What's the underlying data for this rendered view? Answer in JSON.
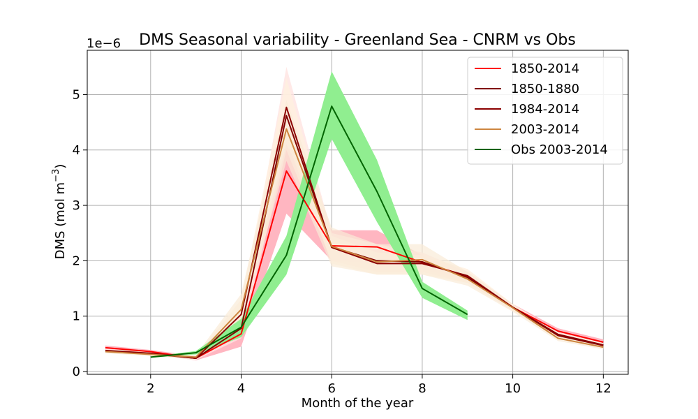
{
  "chart_data": {
    "type": "line",
    "title": "DMS Seasonal variability - Greenland Sea - CNRM vs Obs",
    "xlabel": "Month of the year",
    "ylabel_main": "DMS (mol m",
    "ylabel_sup": "−3",
    "ylabel_close": ")",
    "y_offset_text": "1e−6",
    "xlim": [
      0.6,
      12.55
    ],
    "ylim": [
      -0.05,
      5.8
    ],
    "xticks": [
      2,
      4,
      6,
      8,
      10,
      12
    ],
    "yticks": [
      0,
      1,
      2,
      3,
      4,
      5
    ],
    "grid": true,
    "legend_position": "top-right",
    "series": [
      {
        "name": "1850-2014",
        "color": "#ff0000",
        "band_color": "#ffb6c1",
        "band_opacity": 1.0,
        "x": [
          1,
          2,
          3,
          4,
          5,
          6,
          7,
          8,
          9,
          10,
          11,
          12
        ],
        "y": [
          0.43,
          0.36,
          0.24,
          0.68,
          3.62,
          2.27,
          2.25,
          1.97,
          1.72,
          1.16,
          0.73,
          0.53
        ],
        "lower": [
          0.39,
          0.33,
          0.2,
          0.45,
          2.85,
          2.0,
          1.95,
          1.85,
          1.62,
          1.1,
          0.68,
          0.47
        ],
        "upper": [
          0.47,
          0.39,
          0.28,
          0.9,
          4.1,
          2.55,
          2.55,
          2.1,
          1.8,
          1.22,
          0.78,
          0.58
        ]
      },
      {
        "name": "1850-1880",
        "color": "#800000",
        "band_color": "#ffe4e1",
        "band_opacity": 0.8,
        "x": [
          1,
          2,
          3,
          4,
          5,
          6,
          7,
          8,
          9,
          10,
          11,
          12
        ],
        "y": [
          0.38,
          0.33,
          0.24,
          0.78,
          4.62,
          2.25,
          2.0,
          1.98,
          1.7,
          1.16,
          0.67,
          0.48
        ],
        "lower": [
          0.35,
          0.3,
          0.21,
          0.6,
          4.0,
          2.0,
          1.8,
          1.8,
          1.6,
          1.1,
          0.62,
          0.44
        ],
        "upper": [
          0.41,
          0.36,
          0.27,
          1.0,
          5.5,
          2.5,
          2.3,
          2.15,
          1.8,
          1.22,
          0.72,
          0.53
        ]
      },
      {
        "name": "1984-2014",
        "color": "#8b0000",
        "band_color": "#fff0e0",
        "band_opacity": 0.8,
        "x": [
          1,
          2,
          3,
          4,
          5,
          6,
          7,
          8,
          9,
          10,
          11,
          12
        ],
        "y": [
          0.37,
          0.32,
          0.24,
          1.03,
          4.77,
          2.24,
          1.95,
          1.95,
          1.73,
          1.16,
          0.65,
          0.47
        ],
        "lower": [
          0.34,
          0.29,
          0.21,
          0.8,
          4.2,
          1.95,
          1.75,
          1.75,
          1.6,
          1.1,
          0.6,
          0.43
        ],
        "upper": [
          0.4,
          0.35,
          0.27,
          1.3,
          5.3,
          2.45,
          2.15,
          2.1,
          1.85,
          1.22,
          0.7,
          0.52
        ]
      },
      {
        "name": "2003-2014",
        "color": "#cd853f",
        "band_color": "#faebd7",
        "band_opacity": 0.7,
        "x": [
          1,
          2,
          3,
          4,
          5,
          6,
          7,
          8,
          9,
          10,
          11,
          12
        ],
        "y": [
          0.36,
          0.31,
          0.26,
          1.12,
          4.38,
          2.26,
          1.98,
          2.02,
          1.67,
          1.15,
          0.6,
          0.44
        ],
        "lower": [
          0.33,
          0.28,
          0.22,
          0.85,
          3.8,
          1.9,
          1.75,
          1.75,
          1.55,
          1.08,
          0.55,
          0.4
        ],
        "upper": [
          0.39,
          0.34,
          0.3,
          1.4,
          4.9,
          2.6,
          2.3,
          2.3,
          1.8,
          1.22,
          0.66,
          0.49
        ]
      },
      {
        "name": "Obs 2003-2014",
        "color": "#006400",
        "band_color": "#90ee90",
        "band_opacity": 1.0,
        "x": [
          2,
          3,
          4,
          5,
          6,
          7,
          8,
          9
        ],
        "y": [
          0.26,
          0.34,
          0.8,
          2.1,
          4.79,
          3.25,
          1.5,
          1.03
        ],
        "lower": [
          0.25,
          0.31,
          0.62,
          1.75,
          4.2,
          2.7,
          1.33,
          0.93
        ],
        "upper": [
          0.27,
          0.37,
          0.95,
          2.45,
          5.42,
          3.82,
          1.62,
          1.1
        ]
      }
    ]
  }
}
